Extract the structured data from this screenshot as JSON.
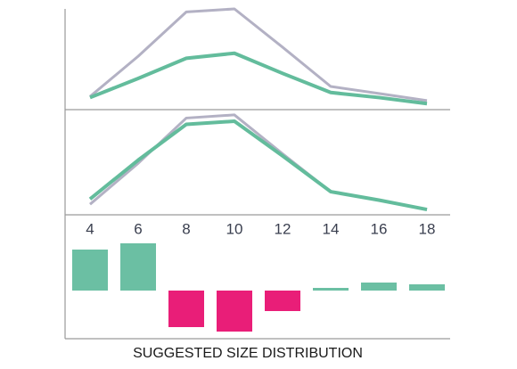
{
  "chart_data": [
    {
      "type": "line",
      "ylim": [
        0,
        100
      ],
      "series": [
        {
          "color": "#b3b1c4",
          "values": [
            13,
            53,
            97,
            100,
            62,
            23,
            16,
            9
          ]
        },
        {
          "color": "#63bc9c",
          "values": [
            12,
            31,
            51,
            56,
            36,
            17,
            12,
            6
          ]
        }
      ]
    },
    {
      "type": "line",
      "ylim": [
        0,
        100
      ],
      "series": [
        {
          "color": "#b3b1c4",
          "values": [
            10,
            49,
            92,
            95,
            58,
            22,
            14,
            5
          ]
        },
        {
          "color": "#63bc9c",
          "values": [
            15,
            52,
            86,
            89,
            56,
            22,
            14,
            5
          ]
        }
      ]
    },
    {
      "type": "bar",
      "title": "SUGGESTED SIZE DISTRIBUTION",
      "categories": [
        "4",
        "6",
        "8",
        "10",
        "12",
        "14",
        "16",
        "18"
      ],
      "values": [
        46,
        53,
        -41,
        -46,
        -23,
        3,
        9,
        7
      ],
      "positive_color": "#6bbfa3",
      "negative_color": "#e91e78",
      "ylim": [
        -54,
        54
      ]
    }
  ]
}
